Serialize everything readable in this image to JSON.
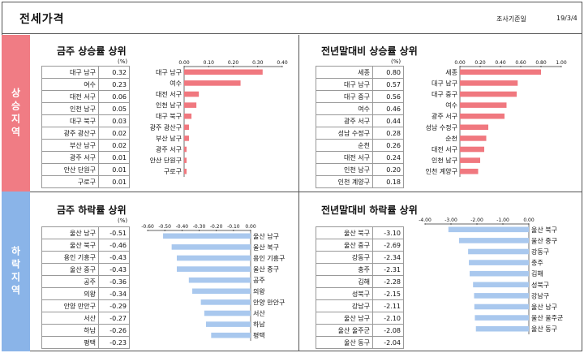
{
  "header": {
    "title": "전세가격",
    "survey_label": "조사기준일",
    "survey_date": "19/3/4"
  },
  "sections": {
    "rise": "상승지역",
    "fall": "하락지역"
  },
  "percent_label": "(%)",
  "chart_data": [
    {
      "id": "week_rise",
      "type": "bar",
      "title": "금주 상승률 상위",
      "categories": [
        "대구 남구",
        "여수",
        "대전 서구",
        "인천 남구",
        "대구 북구",
        "광주 광산구",
        "부산 남구",
        "광주 서구",
        "안산 단원구",
        "구로구"
      ],
      "values": [
        0.32,
        0.23,
        0.06,
        0.05,
        0.03,
        0.02,
        0.02,
        0.01,
        0.01,
        0.01
      ],
      "value_labels": [
        "0.32",
        "0.23",
        "0.06",
        "0.05",
        "0.03",
        "0.02",
        "0.02",
        "0.01",
        "0.01",
        "0.01"
      ],
      "xlim": [
        0,
        0.4
      ],
      "ticks": [
        0,
        0.1,
        0.2,
        0.3,
        0.4
      ],
      "tick_labels": [
        "0.00",
        "0.10",
        "0.20",
        "0.30",
        "0.40"
      ],
      "color": "#f0787f"
    },
    {
      "id": "year_rise",
      "type": "bar",
      "title": "전년말대비 상승률 상위",
      "categories": [
        "세종",
        "대구 남구",
        "대구 중구",
        "여수",
        "광주 서구",
        "성남 수정구",
        "순천",
        "대전 서구",
        "인천 남구",
        "인천 계양구"
      ],
      "values": [
        0.8,
        0.57,
        0.56,
        0.46,
        0.44,
        0.28,
        0.26,
        0.24,
        0.2,
        0.18
      ],
      "value_labels": [
        "0.80",
        "0.57",
        "0.56",
        "0.46",
        "0.44",
        "0.28",
        "0.26",
        "0.24",
        "0.20",
        "0.18"
      ],
      "xlim": [
        0,
        1.0
      ],
      "ticks": [
        0,
        0.2,
        0.4,
        0.6,
        0.8,
        1.0
      ],
      "tick_labels": [
        "0.00",
        "0.20",
        "0.40",
        "0.60",
        "0.80",
        "1.00"
      ],
      "color": "#f0787f"
    },
    {
      "id": "week_fall",
      "type": "bar",
      "title": "금주 하락률 상위",
      "categories": [
        "울산 남구",
        "울산 북구",
        "용인 기흥구",
        "울산 중구",
        "공주",
        "의왕",
        "안양 만안구",
        "서산",
        "하남",
        "평택"
      ],
      "values": [
        -0.51,
        -0.46,
        -0.43,
        -0.43,
        -0.36,
        -0.34,
        -0.29,
        -0.27,
        -0.26,
        -0.23
      ],
      "value_labels": [
        "-0.51",
        "-0.46",
        "-0.43",
        "-0.43",
        "-0.36",
        "-0.34",
        "-0.29",
        "-0.27",
        "-0.26",
        "-0.23"
      ],
      "xlim": [
        -0.6,
        0
      ],
      "ticks": [
        -0.6,
        -0.5,
        -0.4,
        -0.3,
        -0.2,
        -0.1,
        0
      ],
      "tick_labels": [
        "-0.60",
        "-0.50",
        "-0.40",
        "-0.30",
        "-0.20",
        "-0.10",
        "0.00"
      ],
      "color": "#a9c8ee"
    },
    {
      "id": "year_fall",
      "type": "bar",
      "title": "전년말대비 하락률 상위",
      "categories": [
        "울산 북구",
        "울산 중구",
        "강동구",
        "충주",
        "김해",
        "성북구",
        "강남구",
        "울산 남구",
        "울산 울주군",
        "울산 동구"
      ],
      "values": [
        -3.1,
        -2.69,
        -2.34,
        -2.31,
        -2.28,
        -2.15,
        -2.11,
        -2.1,
        -2.08,
        -2.04
      ],
      "value_labels": [
        "-3.10",
        "-2.69",
        "-2.34",
        "-2.31",
        "-2.28",
        "-2.15",
        "-2.11",
        "-2.10",
        "-2.08",
        "-2.04"
      ],
      "xlim": [
        -4,
        0
      ],
      "ticks": [
        -4,
        -3,
        -2,
        -1,
        0
      ],
      "tick_labels": [
        "-4.00",
        "-3.00",
        "-2.00",
        "-1.00",
        "0.00"
      ],
      "color": "#a9c8ee"
    }
  ]
}
